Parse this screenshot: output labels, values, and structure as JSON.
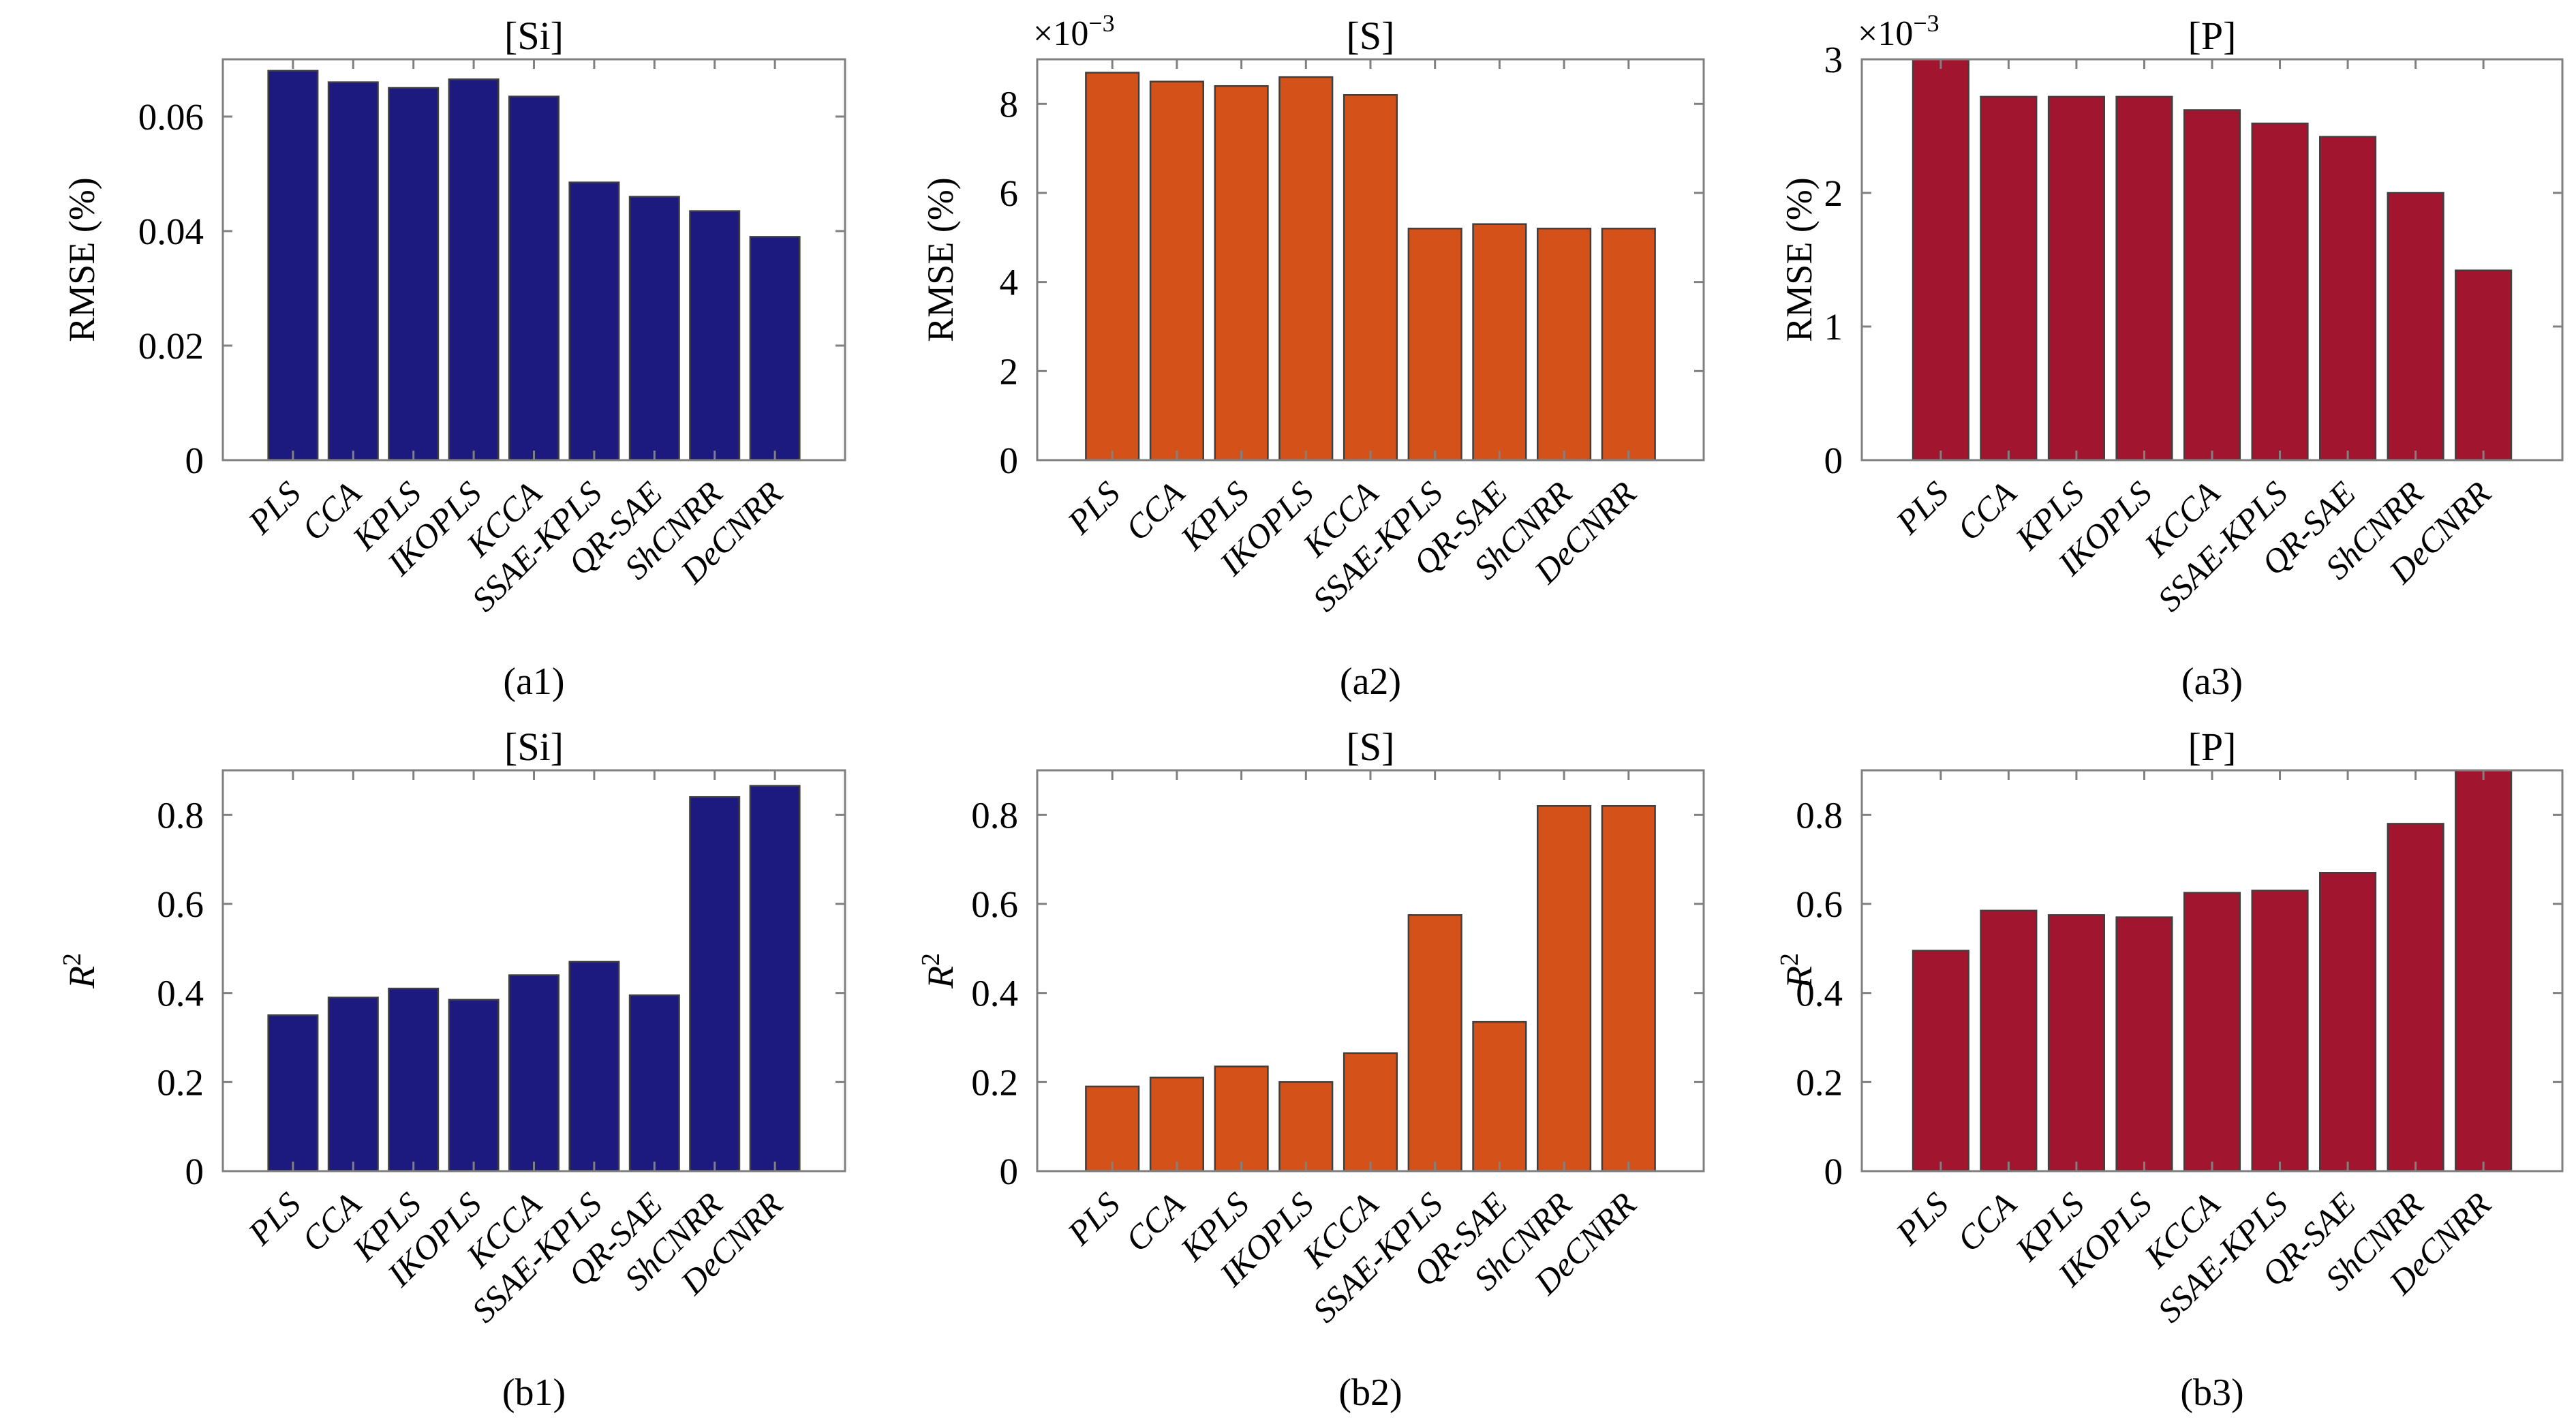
{
  "figure": {
    "background": "#ffffff",
    "rows": 2,
    "cols": 3,
    "axis_color": "#808080",
    "bar_edge_color": "#3f3f3f"
  },
  "chart_data": [
    {
      "id": "a1",
      "type": "bar",
      "title": "[Si]",
      "ylabel": "RMSE (%)",
      "ylabel_italic": false,
      "ylabel_sup": "",
      "offset_label": null,
      "caption": "(a1)",
      "bar_color": "#1C1A7E",
      "categories": [
        "PLS",
        "CCA",
        "KPLS",
        "IKOPLS",
        "KCCA",
        "SSAE-KPLS",
        "QR-SAE",
        "ShCNRR",
        "DeCNRR"
      ],
      "values": [
        0.068,
        0.066,
        0.065,
        0.0665,
        0.0635,
        0.0485,
        0.046,
        0.0435,
        0.039
      ],
      "ylim": [
        0,
        0.07
      ],
      "yticks": [
        0,
        0.02,
        0.04,
        0.06
      ],
      "ytick_labels": [
        "0",
        "0.02",
        "0.04",
        "0.06"
      ],
      "grid": false,
      "legend": null
    },
    {
      "id": "a2",
      "type": "bar",
      "title": "[S]",
      "ylabel": "RMSE (%)",
      "ylabel_italic": false,
      "ylabel_sup": "",
      "offset_label": {
        "base": "×10",
        "exp": "−3"
      },
      "caption": "(a2)",
      "bar_color": "#D4521A",
      "categories": [
        "PLS",
        "CCA",
        "KPLS",
        "IKOPLS",
        "KCCA",
        "SSAE-KPLS",
        "QR-SAE",
        "ShCNRR",
        "DeCNRR"
      ],
      "values": [
        8.7,
        8.5,
        8.4,
        8.6,
        8.2,
        5.2,
        5.3,
        5.2,
        5.2
      ],
      "ylim": [
        0,
        9
      ],
      "yticks": [
        0,
        2,
        4,
        6,
        8
      ],
      "ytick_labels": [
        "0",
        "2",
        "4",
        "6",
        "8"
      ],
      "grid": false,
      "legend": null
    },
    {
      "id": "a3",
      "type": "bar",
      "title": "[P]",
      "ylabel": "RMSE (%)",
      "ylabel_italic": false,
      "ylabel_sup": "",
      "offset_label": {
        "base": "×10",
        "exp": "−3"
      },
      "caption": "(a3)",
      "bar_color": "#A2152F",
      "categories": [
        "PLS",
        "CCA",
        "KPLS",
        "IKOPLS",
        "KCCA",
        "SSAE-KPLS",
        "QR-SAE",
        "ShCNRR",
        "DeCNRR"
      ],
      "values": [
        3.0,
        2.72,
        2.72,
        2.72,
        2.62,
        2.52,
        2.42,
        2.0,
        1.42
      ],
      "ylim": [
        0,
        3
      ],
      "yticks": [
        0,
        1,
        2,
        3
      ],
      "ytick_labels": [
        "0",
        "1",
        "2",
        "3"
      ],
      "grid": false,
      "legend": null
    },
    {
      "id": "b1",
      "type": "bar",
      "title": "[Si]",
      "ylabel": "R",
      "ylabel_italic": true,
      "ylabel_sup": "2",
      "offset_label": null,
      "caption": "(b1)",
      "bar_color": "#1C1A7E",
      "categories": [
        "PLS",
        "CCA",
        "KPLS",
        "IKOPLS",
        "KCCA",
        "SSAE-KPLS",
        "QR-SAE",
        "ShCNRR",
        "DeCNRR"
      ],
      "values": [
        0.35,
        0.39,
        0.41,
        0.385,
        0.44,
        0.47,
        0.395,
        0.84,
        0.865
      ],
      "ylim": [
        0,
        0.9
      ],
      "yticks": [
        0,
        0.2,
        0.4,
        0.6,
        0.8
      ],
      "ytick_labels": [
        "0",
        "0.2",
        "0.4",
        "0.6",
        "0.8"
      ],
      "grid": false,
      "legend": null
    },
    {
      "id": "b2",
      "type": "bar",
      "title": "[S]",
      "ylabel": "R",
      "ylabel_italic": true,
      "ylabel_sup": "2",
      "offset_label": null,
      "caption": "(b2)",
      "bar_color": "#D4521A",
      "categories": [
        "PLS",
        "CCA",
        "KPLS",
        "IKOPLS",
        "KCCA",
        "SSAE-KPLS",
        "QR-SAE",
        "ShCNRR",
        "DeCNRR"
      ],
      "values": [
        0.19,
        0.21,
        0.235,
        0.2,
        0.265,
        0.575,
        0.335,
        0.82,
        0.82
      ],
      "ylim": [
        0,
        0.9
      ],
      "yticks": [
        0,
        0.2,
        0.4,
        0.6,
        0.8
      ],
      "ytick_labels": [
        "0",
        "0.2",
        "0.4",
        "0.6",
        "0.8"
      ],
      "grid": false,
      "legend": null
    },
    {
      "id": "b3",
      "type": "bar",
      "title": "[P]",
      "ylabel": "R",
      "ylabel_italic": true,
      "ylabel_sup": "2",
      "offset_label": null,
      "caption": "(b3)",
      "bar_color": "#A2152F",
      "categories": [
        "PLS",
        "CCA",
        "KPLS",
        "IKOPLS",
        "KCCA",
        "SSAE-KPLS",
        "QR-SAE",
        "ShCNRR",
        "DeCNRR"
      ],
      "values": [
        0.495,
        0.585,
        0.575,
        0.57,
        0.625,
        0.63,
        0.67,
        0.78,
        0.9
      ],
      "ylim": [
        0,
        0.9
      ],
      "yticks": [
        0,
        0.2,
        0.4,
        0.6,
        0.8
      ],
      "ytick_labels": [
        "0",
        "0.2",
        "0.4",
        "0.6",
        "0.8"
      ],
      "grid": false,
      "legend": null
    }
  ]
}
